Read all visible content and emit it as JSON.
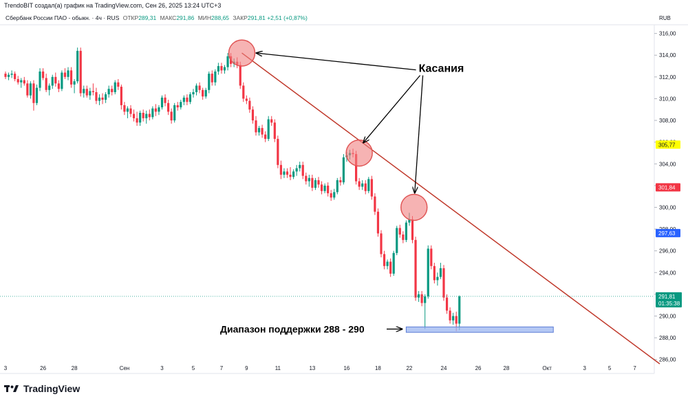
{
  "header": {
    "credit": "TrendoBIT создал(а) график на TradingView.com, Сен 26, 2025 13:24 UTC+3"
  },
  "legend": {
    "symbol": "Сбербанк России ПАО - обыкн. · 4ч · RUS",
    "open_label": "ОТКР",
    "open_value": "289,31",
    "high_label": "МАКС",
    "high_value": "291,86",
    "low_label": "МИН",
    "low_value": "288,65",
    "close_label": "ЗАКР",
    "close_value": "291,81",
    "change": "+2,51 (+0,87%)"
  },
  "price_axis": {
    "currency": "RUB"
  },
  "footer": {
    "brand": "TradingView"
  },
  "colors": {
    "up": "#089981",
    "down": "#f23645",
    "trendline": "#c0392b",
    "touch_circle": "#f08080",
    "support_zone": "#9bb5f0"
  },
  "chart_data": {
    "type": "candlestick",
    "y_range": [
      285.6,
      316.8
    ],
    "y_ticks": [
      "316,00",
      "314,00",
      "312,00",
      "310,00",
      "308,00",
      "306,00",
      "304,00",
      "302,00",
      "300,00",
      "298,00",
      "296,00",
      "294,00",
      "292,00",
      "290,00",
      "288,00",
      "286,00"
    ],
    "x_ticks": [
      {
        "label": "3",
        "i": 0
      },
      {
        "label": "26",
        "i": 12
      },
      {
        "label": "28",
        "i": 22
      },
      {
        "label": "Сен",
        "i": 38
      },
      {
        "label": "3",
        "i": 50
      },
      {
        "label": "5",
        "i": 60
      },
      {
        "label": "7",
        "i": 69
      },
      {
        "label": "9",
        "i": 77
      },
      {
        "label": "11",
        "i": 87
      },
      {
        "label": "13",
        "i": 98
      },
      {
        "label": "16",
        "i": 109
      },
      {
        "label": "18",
        "i": 119
      },
      {
        "label": "22",
        "i": 129
      },
      {
        "label": "24",
        "i": 140
      },
      {
        "label": "26",
        "i": 151
      },
      {
        "label": "28",
        "i": 160
      },
      {
        "label": "Окт",
        "i": 173
      },
      {
        "label": "3",
        "i": 185
      },
      {
        "label": "5",
        "i": 193
      },
      {
        "label": "7",
        "i": 201
      }
    ],
    "candles": [
      [
        312.3,
        312.5,
        311.8,
        312.0
      ],
      [
        312.0,
        312.4,
        311.7,
        312.2
      ],
      [
        312.2,
        312.6,
        311.9,
        312.3
      ],
      [
        312.3,
        312.5,
        311.6,
        311.8
      ],
      [
        311.8,
        312.1,
        311.3,
        311.5
      ],
      [
        311.5,
        311.9,
        311.0,
        311.7
      ],
      [
        311.7,
        312.0,
        311.2,
        311.4
      ],
      [
        311.4,
        311.7,
        310.1,
        310.3
      ],
      [
        310.3,
        311.6,
        310.0,
        311.4
      ],
      [
        311.4,
        311.7,
        308.9,
        309.6
      ],
      [
        309.6,
        311.3,
        309.4,
        311.0
      ],
      [
        311.0,
        312.8,
        310.7,
        312.5
      ],
      [
        312.5,
        312.8,
        311.7,
        311.9
      ],
      [
        311.9,
        312.3,
        310.6,
        310.8
      ],
      [
        310.8,
        311.4,
        310.3,
        311.2
      ],
      [
        311.2,
        312.2,
        310.9,
        312.0
      ],
      [
        312.0,
        312.4,
        311.1,
        311.4
      ],
      [
        311.4,
        311.7,
        310.6,
        310.9
      ],
      [
        310.9,
        312.6,
        310.7,
        312.4
      ],
      [
        312.4,
        312.8,
        311.8,
        312.0
      ],
      [
        312.0,
        312.9,
        311.7,
        312.6
      ],
      [
        312.6,
        312.9,
        311.0,
        311.3
      ],
      [
        311.3,
        311.8,
        310.5,
        311.6
      ],
      [
        311.6,
        314.7,
        311.4,
        314.4
      ],
      [
        314.4,
        314.7,
        310.2,
        310.5
      ],
      [
        310.5,
        311.2,
        310.1,
        310.9
      ],
      [
        310.9,
        311.2,
        310.1,
        310.3
      ],
      [
        310.3,
        311.0,
        309.9,
        310.7
      ],
      [
        310.7,
        311.4,
        310.3,
        310.6
      ],
      [
        310.6,
        311.0,
        309.5,
        309.8
      ],
      [
        309.8,
        310.4,
        309.4,
        310.1
      ],
      [
        310.1,
        310.5,
        309.5,
        309.9
      ],
      [
        309.9,
        310.6,
        309.6,
        310.4
      ],
      [
        310.4,
        311.2,
        310.1,
        310.9
      ],
      [
        310.9,
        311.2,
        310.3,
        310.6
      ],
      [
        310.6,
        311.7,
        310.4,
        311.5
      ],
      [
        311.5,
        311.8,
        310.8,
        311.1
      ],
      [
        311.1,
        311.3,
        309.0,
        309.4
      ],
      [
        309.4,
        309.7,
        308.5,
        308.8
      ],
      [
        308.8,
        309.3,
        308.2,
        309.1
      ],
      [
        309.1,
        309.4,
        308.3,
        308.6
      ],
      [
        308.6,
        309.0,
        307.9,
        308.2
      ],
      [
        308.2,
        308.8,
        307.5,
        307.8
      ],
      [
        307.8,
        308.9,
        307.5,
        308.7
      ],
      [
        308.7,
        309.0,
        307.9,
        308.2
      ],
      [
        308.2,
        308.9,
        307.7,
        308.6
      ],
      [
        308.6,
        309.0,
        308.0,
        308.3
      ],
      [
        308.3,
        309.3,
        308.1,
        309.1
      ],
      [
        309.1,
        309.5,
        308.4,
        308.8
      ],
      [
        308.8,
        309.4,
        308.5,
        309.2
      ],
      [
        309.2,
        310.3,
        309.0,
        310.1
      ],
      [
        310.1,
        310.4,
        309.3,
        309.6
      ],
      [
        309.6,
        309.9,
        308.5,
        308.8
      ],
      [
        308.8,
        309.1,
        307.7,
        308.0
      ],
      [
        308.0,
        309.6,
        307.8,
        309.4
      ],
      [
        309.4,
        309.7,
        308.9,
        309.2
      ],
      [
        309.2,
        309.9,
        309.0,
        309.7
      ],
      [
        309.7,
        310.3,
        309.4,
        310.1
      ],
      [
        310.1,
        310.4,
        309.4,
        309.7
      ],
      [
        309.7,
        310.6,
        309.5,
        310.4
      ],
      [
        310.4,
        310.9,
        310.1,
        310.6
      ],
      [
        310.6,
        311.4,
        310.3,
        311.2
      ],
      [
        311.2,
        311.5,
        310.5,
        310.8
      ],
      [
        310.8,
        311.0,
        309.9,
        310.2
      ],
      [
        310.2,
        311.0,
        310.0,
        310.8
      ],
      [
        310.8,
        312.5,
        310.5,
        312.3
      ],
      [
        312.3,
        312.6,
        311.2,
        311.5
      ],
      [
        311.5,
        312.7,
        311.2,
        312.5
      ],
      [
        312.5,
        313.3,
        312.2,
        313.0
      ],
      [
        313.0,
        313.3,
        312.3,
        312.6
      ],
      [
        312.6,
        313.1,
        312.3,
        312.9
      ],
      [
        312.9,
        314.2,
        312.6,
        313.9
      ],
      [
        313.9,
        314.2,
        312.9,
        313.2
      ],
      [
        313.2,
        313.7,
        312.9,
        313.4
      ],
      [
        313.4,
        313.8,
        312.8,
        313.1
      ],
      [
        313.1,
        313.4,
        310.9,
        311.2
      ],
      [
        311.2,
        311.5,
        309.7,
        310.0
      ],
      [
        310.0,
        310.3,
        309.5,
        309.8
      ],
      [
        309.8,
        310.1,
        308.7,
        309.0
      ],
      [
        309.0,
        309.3,
        307.7,
        308.0
      ],
      [
        308.0,
        308.4,
        306.6,
        306.9
      ],
      [
        306.9,
        307.5,
        306.6,
        307.3
      ],
      [
        307.3,
        307.6,
        306.4,
        306.7
      ],
      [
        306.7,
        307.0,
        306.0,
        306.3
      ],
      [
        306.3,
        308.4,
        306.1,
        308.1
      ],
      [
        308.1,
        308.4,
        307.5,
        307.8
      ],
      [
        307.8,
        308.1,
        306.0,
        306.3
      ],
      [
        306.3,
        306.6,
        303.6,
        303.9
      ],
      [
        303.9,
        304.3,
        302.6,
        303.0
      ],
      [
        303.0,
        303.6,
        302.7,
        303.3
      ],
      [
        303.3,
        303.6,
        302.7,
        303.0
      ],
      [
        303.0,
        303.7,
        302.5,
        302.8
      ],
      [
        302.8,
        303.5,
        302.6,
        303.3
      ],
      [
        303.3,
        303.9,
        302.9,
        303.6
      ],
      [
        303.6,
        304.2,
        303.3,
        303.9
      ],
      [
        303.9,
        304.2,
        302.6,
        302.9
      ],
      [
        302.9,
        303.2,
        302.1,
        302.4
      ],
      [
        302.4,
        303.0,
        301.9,
        302.7
      ],
      [
        302.7,
        303.0,
        301.5,
        301.8
      ],
      [
        301.8,
        302.7,
        301.6,
        302.5
      ],
      [
        302.5,
        302.8,
        301.8,
        302.1
      ],
      [
        302.1,
        302.4,
        301.2,
        301.5
      ],
      [
        301.5,
        302.2,
        301.3,
        302.0
      ],
      [
        302.0,
        302.3,
        301.0,
        301.3
      ],
      [
        301.3,
        301.6,
        300.6,
        300.9
      ],
      [
        300.9,
        301.7,
        300.7,
        301.4
      ],
      [
        301.4,
        302.7,
        301.2,
        302.5
      ],
      [
        302.5,
        302.8,
        302.0,
        302.3
      ],
      [
        302.3,
        304.9,
        302.1,
        304.6
      ],
      [
        304.6,
        305.1,
        304.2,
        304.8
      ],
      [
        304.8,
        305.3,
        304.4,
        305.0
      ],
      [
        305.0,
        305.4,
        304.6,
        304.9
      ],
      [
        304.9,
        305.2,
        302.1,
        302.4
      ],
      [
        302.4,
        302.7,
        301.6,
        301.9
      ],
      [
        301.9,
        302.5,
        301.6,
        302.2
      ],
      [
        302.2,
        302.5,
        301.2,
        301.5
      ],
      [
        301.5,
        302.8,
        301.3,
        302.6
      ],
      [
        302.6,
        302.9,
        300.7,
        301.0
      ],
      [
        301.0,
        301.3,
        299.3,
        299.6
      ],
      [
        299.6,
        299.9,
        297.3,
        297.6
      ],
      [
        297.6,
        297.9,
        295.4,
        295.7
      ],
      [
        295.7,
        296.0,
        294.3,
        294.6
      ],
      [
        294.6,
        295.2,
        294.3,
        295.0
      ],
      [
        295.0,
        295.3,
        293.6,
        293.9
      ],
      [
        293.9,
        296.0,
        293.7,
        295.8
      ],
      [
        295.8,
        298.3,
        295.6,
        298.1
      ],
      [
        298.1,
        298.4,
        297.2,
        297.5
      ],
      [
        297.5,
        297.8,
        296.7,
        297.0
      ],
      [
        297.0,
        298.8,
        296.8,
        298.6
      ],
      [
        298.6,
        299.5,
        298.3,
        298.9
      ],
      [
        298.9,
        299.2,
        296.7,
        297.0
      ],
      [
        297.0,
        297.3,
        291.4,
        291.7
      ],
      [
        291.7,
        292.3,
        291.3,
        292.0
      ],
      [
        292.0,
        292.3,
        290.9,
        291.2
      ],
      [
        291.2,
        292.0,
        288.8,
        291.8
      ],
      [
        291.8,
        296.5,
        291.6,
        296.2
      ],
      [
        296.2,
        296.5,
        294.3,
        294.6
      ],
      [
        294.6,
        294.9,
        293.0,
        293.3
      ],
      [
        293.3,
        294.0,
        292.8,
        293.6
      ],
      [
        293.6,
        294.9,
        293.4,
        294.4
      ],
      [
        294.4,
        294.7,
        291.4,
        291.7
      ],
      [
        291.7,
        292.0,
        290.2,
        290.5
      ],
      [
        290.5,
        290.8,
        289.3,
        289.6
      ],
      [
        289.6,
        290.3,
        289.2,
        290.0
      ],
      [
        290.0,
        290.4,
        288.6,
        289.3
      ],
      [
        289.3,
        291.9,
        288.7,
        291.8
      ]
    ],
    "price_badges": [
      {
        "label": "305,77",
        "price": 305.77,
        "bg": "#ffff00",
        "fg": "#131722"
      },
      {
        "label": "301,84",
        "price": 301.84,
        "bg": "#f23645",
        "fg": "#ffffff"
      },
      {
        "label": "297,63",
        "price": 297.63,
        "bg": "#2962ff",
        "fg": "#ffffff"
      }
    ],
    "current_price": {
      "label": "291,81",
      "countdown": "01:35:38",
      "price": 291.81,
      "bg": "#089981",
      "fg": "#ffffff"
    },
    "trendline": {
      "from": {
        "i": 75.5,
        "price": 314.2
      },
      "to": {
        "i": 209,
        "price": 285.6
      }
    },
    "touches": [
      {
        "i": 75.5,
        "price": 314.2
      },
      {
        "i": 113,
        "price": 305.0
      },
      {
        "i": 130.5,
        "price": 300.0
      }
    ],
    "support_zone": {
      "i_from": 128,
      "i_to": 175,
      "price_top": 289.0,
      "price_bottom": 288.5
    },
    "annotations": {
      "touches_label": "Касания",
      "support_label": "Диапазон поддержки 288 - 290"
    }
  }
}
